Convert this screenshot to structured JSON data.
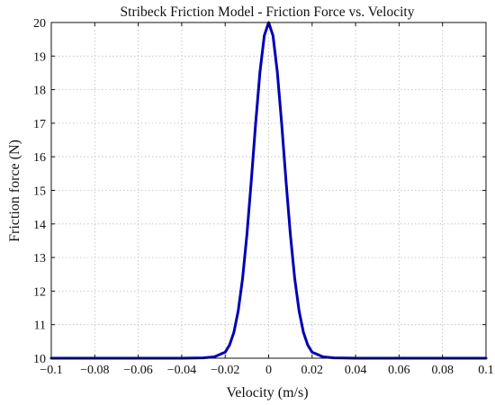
{
  "chart_data": {
    "type": "line",
    "title": "Stribeck Friction Model - Friction Force vs. Velocity",
    "xlabel": "Velocity (m/s)",
    "ylabel": "Friction force (N)",
    "xlim": [
      -0.1,
      0.1
    ],
    "ylim": [
      10,
      20
    ],
    "x_ticks": [
      "-0.1",
      "-0.08",
      "-0.06",
      "-0.04",
      "-0.02",
      "0",
      "0.02",
      "0.04",
      "0.06",
      "0.08",
      "0.1"
    ],
    "y_ticks": [
      "10",
      "11",
      "12",
      "13",
      "14",
      "15",
      "16",
      "17",
      "18",
      "19",
      "20"
    ],
    "grid": true,
    "line_color": "#0000b4",
    "series": [
      {
        "x": [
          -0.1,
          -0.04,
          -0.03,
          -0.025,
          -0.02,
          -0.018,
          -0.016,
          -0.014,
          -0.012,
          -0.01,
          -0.008,
          -0.006,
          -0.004,
          -0.002,
          0,
          0.002,
          0.004,
          0.006,
          0.008,
          0.01,
          0.012,
          0.014,
          0.016,
          0.018,
          0.02,
          0.025,
          0.03,
          0.04,
          0.1
        ],
        "y": [
          10,
          10,
          10.01,
          10.04,
          10.18,
          10.39,
          10.77,
          11.41,
          12.37,
          13.68,
          15.27,
          16.98,
          18.52,
          19.61,
          20,
          19.61,
          18.52,
          16.98,
          15.27,
          13.68,
          12.37,
          11.41,
          10.77,
          10.39,
          10.18,
          10.04,
          10.01,
          10,
          10
        ]
      }
    ]
  }
}
